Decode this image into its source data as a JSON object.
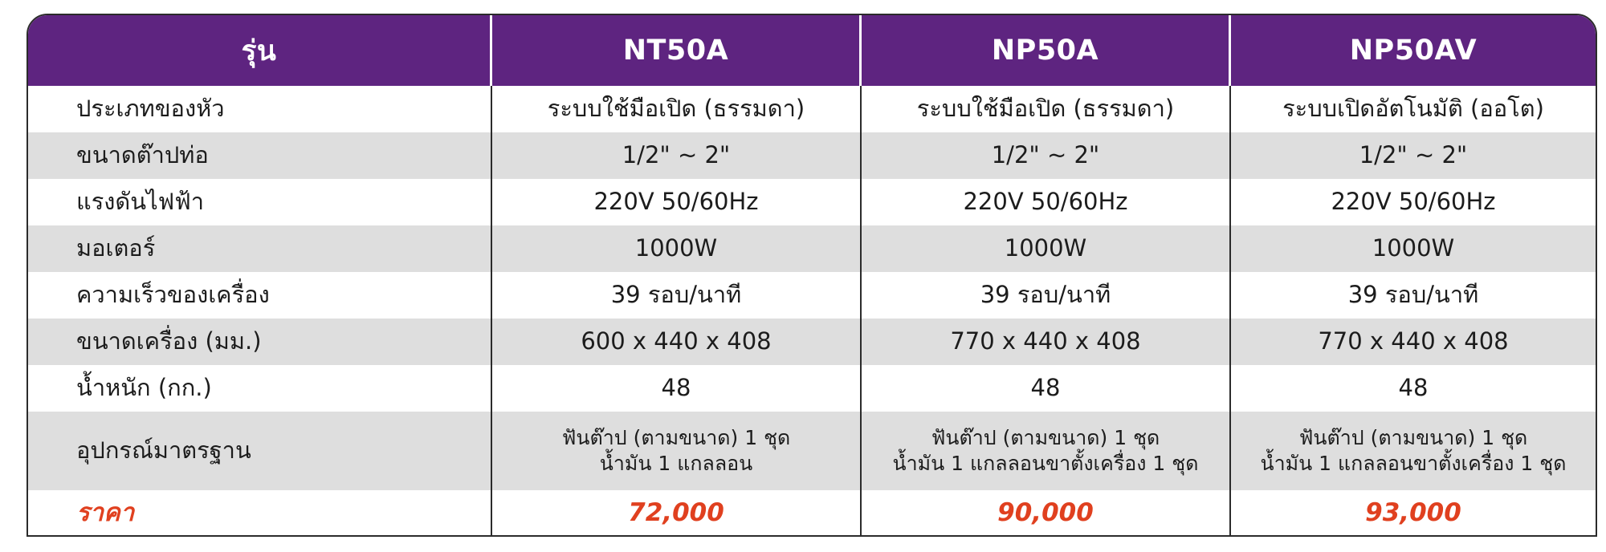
{
  "table": {
    "header": {
      "label": "รุ่น",
      "models": [
        "NT50A",
        "NP50A",
        "NP50AV"
      ]
    },
    "rows": [
      {
        "label": "ประเภทของหัว",
        "values": [
          "ระบบใช้มือเปิด (ธรรมดา)",
          "ระบบใช้มือเปิด (ธรรมดา)",
          "ระบบเปิดอัตโนมัติ (ออโต)"
        ]
      },
      {
        "label": "ขนาดต๊าปท่อ",
        "values": [
          "1/2\" ~ 2\"",
          "1/2\" ~ 2\"",
          "1/2\" ~ 2\""
        ]
      },
      {
        "label": "แรงดันไฟฟ้า",
        "values": [
          "220V 50/60Hz",
          "220V 50/60Hz",
          "220V 50/60Hz"
        ]
      },
      {
        "label": "มอเตอร์",
        "values": [
          "1000W",
          "1000W",
          "1000W"
        ]
      },
      {
        "label": "ความเร็วของเครื่อง",
        "values": [
          "39 รอบ/นาที",
          "39 รอบ/นาที",
          "39 รอบ/นาที"
        ]
      },
      {
        "label": "ขนาดเครื่อง (มม.)",
        "values": [
          "600 x 440 x 408",
          "770 x 440 x 408",
          "770 x 440 x 408"
        ]
      },
      {
        "label": "น้ำหนัก (กก.)",
        "values": [
          "48",
          "48",
          "48"
        ]
      }
    ],
    "equipment": {
      "label": "อุปกรณ์มาตรฐาน",
      "values": [
        [
          "ฟันต๊าป (ตามขนาด) 1 ชุด",
          "น้ำมัน 1 แกลลอน"
        ],
        [
          "ฟันต๊าป (ตามขนาด) 1 ชุด",
          "น้ำมัน 1 แกลลอนขาตั้งเครื่อง 1 ชุด"
        ],
        [
          "ฟันต๊าป (ตามขนาด) 1 ชุด",
          "น้ำมัน 1 แกลลอนขาตั้งเครื่อง 1 ชุด"
        ]
      ]
    },
    "price": {
      "label": "ราคา",
      "values": [
        "72,000",
        "90,000",
        "93,000"
      ]
    }
  },
  "colors": {
    "header_bg": "#5e2480",
    "header_text": "#ffffff",
    "shaded_row": "#dedede",
    "price_text": "#e0401f"
  }
}
